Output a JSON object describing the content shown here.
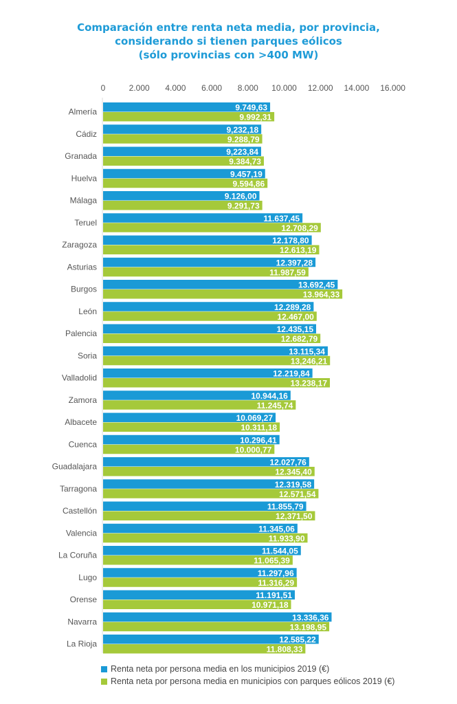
{
  "chart_data": {
    "type": "bar",
    "orientation": "horizontal",
    "title": [
      "Comparación entre renta neta media, por provincia,",
      "considerando si tienen parques eólicos",
      "(sólo provincias con >400 MW)"
    ],
    "xlim": [
      0,
      16000
    ],
    "ticks": [
      0,
      2000,
      4000,
      6000,
      8000,
      10000,
      12000,
      14000,
      16000
    ],
    "tick_labels": [
      "0",
      "2.000",
      "4.000",
      "6.000",
      "8.000",
      "10.000",
      "12.000",
      "14.000",
      "16.000"
    ],
    "grid": false,
    "legend_position": "bottom",
    "categories": [
      "Almería",
      "Cádiz",
      "Granada",
      "Huelva",
      "Málaga",
      "Teruel",
      "Zaragoza",
      "Asturias",
      "Burgos",
      "León",
      "Palencia",
      "Soria",
      "Valladolid",
      "Zamora",
      "Albacete",
      "Cuenca",
      "Guadalajara",
      "Tarragona",
      "Castellón",
      "Valencia",
      "La Coruña",
      "Lugo",
      "Orense",
      "Navarra",
      "La Rioja"
    ],
    "series": [
      {
        "name": "Renta neta por persona media en los municipios 2019 (€)",
        "color": "#1a9ad6",
        "values": [
          9749.63,
          9232.18,
          9223.84,
          9457.19,
          9126.0,
          11637.45,
          12178.8,
          12397.28,
          13692.45,
          12289.28,
          12435.15,
          13115.34,
          12219.84,
          10944.16,
          10069.27,
          10296.41,
          12027.76,
          12319.58,
          11855.79,
          11345.06,
          11544.05,
          11297.96,
          11191.51,
          13336.36,
          12585.22
        ],
        "labels": [
          "9.749,63",
          "9,232,18",
          "9,223,84",
          "9.457,19",
          "9.126,00",
          "11.637,45",
          "12.178,80",
          "12.397,28",
          "13.692,45",
          "12.289,28",
          "12.435,15",
          "13.115,34",
          "12.219,84",
          "10.944,16",
          "10.069,27",
          "10.296,41",
          "12.027,76",
          "12.319,58",
          "11.855,79",
          "11.345,06",
          "11.544,05",
          "11.297,96",
          "11.191,51",
          "13.336,36",
          "12.585,22"
        ]
      },
      {
        "name": "Renta neta por persona media en municipios con parques eólicos 2019 (€)",
        "color": "#a5c93a",
        "values": [
          9992.31,
          9288.79,
          9384.73,
          9594.86,
          9291.73,
          12708.29,
          12613.19,
          11987.59,
          13964.33,
          12467.0,
          12682.79,
          13246.21,
          13238.17,
          11245.74,
          10311.18,
          10000.77,
          12345.4,
          12571.54,
          12371.5,
          11933.9,
          11065.39,
          11316.29,
          10971.18,
          13198.95,
          11808.33
        ],
        "labels": [
          "9.992,31",
          "9.288,79",
          "9.384,73",
          "9.594,86",
          "9.291,73",
          "12.708,29",
          "12.613,19",
          "11.987,59",
          "13.964,33",
          "12.467,00",
          "12.682,79",
          "13,246,21",
          "13.238,17",
          "11.245,74",
          "10.311,18",
          "10.000,77",
          "12.345,40",
          "12.571,54",
          "12,371,50",
          "11.933,90",
          "11.065,39",
          "11.316,29",
          "10.971,18",
          "13.198,95",
          "11.808,33"
        ]
      }
    ]
  }
}
